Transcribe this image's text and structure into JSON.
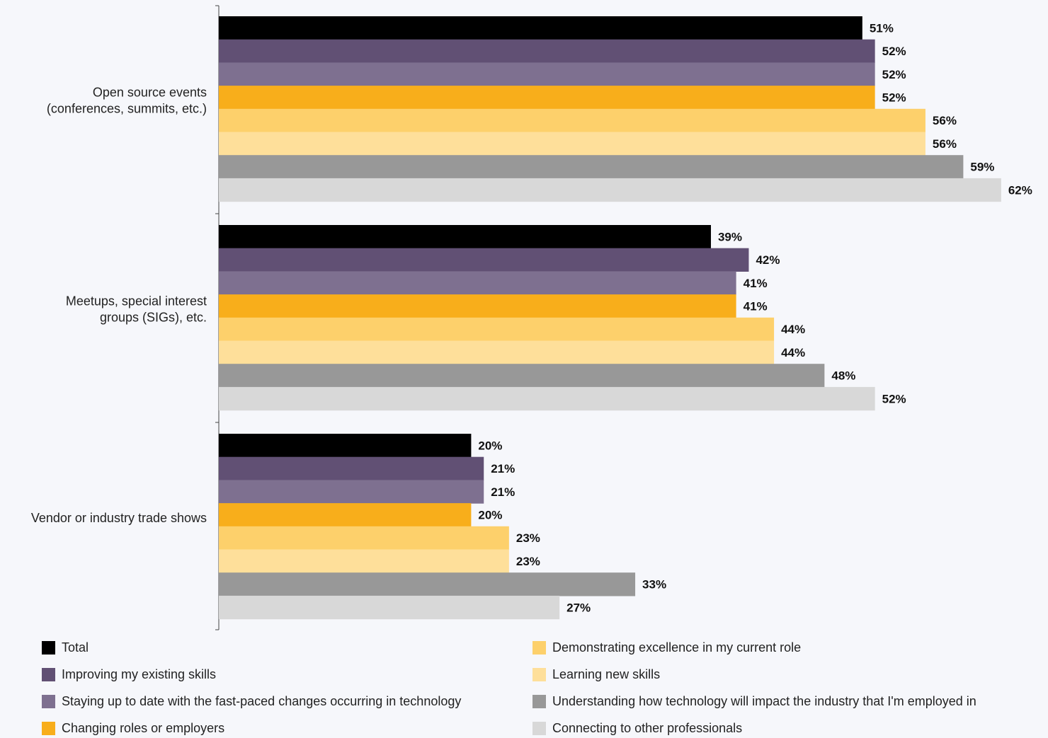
{
  "chart_data": {
    "type": "bar",
    "orientation": "horizontal",
    "categories": [
      "Open source events\n(conferences, summits, etc.)",
      "Meetups, special interest\ngroups (SIGs), etc.",
      "Vendor or industry trade shows"
    ],
    "series": [
      {
        "name": "Total",
        "color": "#000000",
        "values": [
          51,
          39,
          20
        ],
        "labels": [
          "51%",
          "39%",
          "20%"
        ]
      },
      {
        "name": "Improving my existing skills",
        "color": "#615074",
        "values": [
          52,
          42,
          21
        ],
        "labels": [
          "52%",
          "42%",
          "21%"
        ]
      },
      {
        "name": "Staying up to date with the fast-paced changes occurring in technology",
        "color": "#7e7090",
        "values": [
          52,
          41,
          21
        ],
        "labels": [
          "52%",
          "41%",
          "21%"
        ]
      },
      {
        "name": "Changing roles or employers",
        "color": "#f8ae1b",
        "values": [
          52,
          41,
          20
        ],
        "labels": [
          "52%",
          "41%",
          "20%"
        ]
      },
      {
        "name": "Demonstrating excellence in my current role",
        "color": "#fdd06b",
        "values": [
          56,
          44,
          23
        ],
        "labels": [
          "56%",
          "44%",
          "23%"
        ]
      },
      {
        "name": "Learning new skills",
        "color": "#fedf9a",
        "values": [
          56,
          44,
          23
        ],
        "labels": [
          "56%",
          "44%",
          "23%"
        ]
      },
      {
        "name": "Understanding how technology will impact the industry that I'm employed in",
        "color": "#989898",
        "values": [
          59,
          48,
          33
        ],
        "labels": [
          "59%",
          "48%",
          "33%"
        ]
      },
      {
        "name": "Connecting to other professionals",
        "color": "#d8d8d8",
        "values": [
          62,
          52,
          27
        ],
        "labels": [
          "62%",
          "52%",
          "27%"
        ]
      }
    ],
    "xlim": [
      0,
      62
    ],
    "grid": false,
    "legend_position": "bottom"
  }
}
